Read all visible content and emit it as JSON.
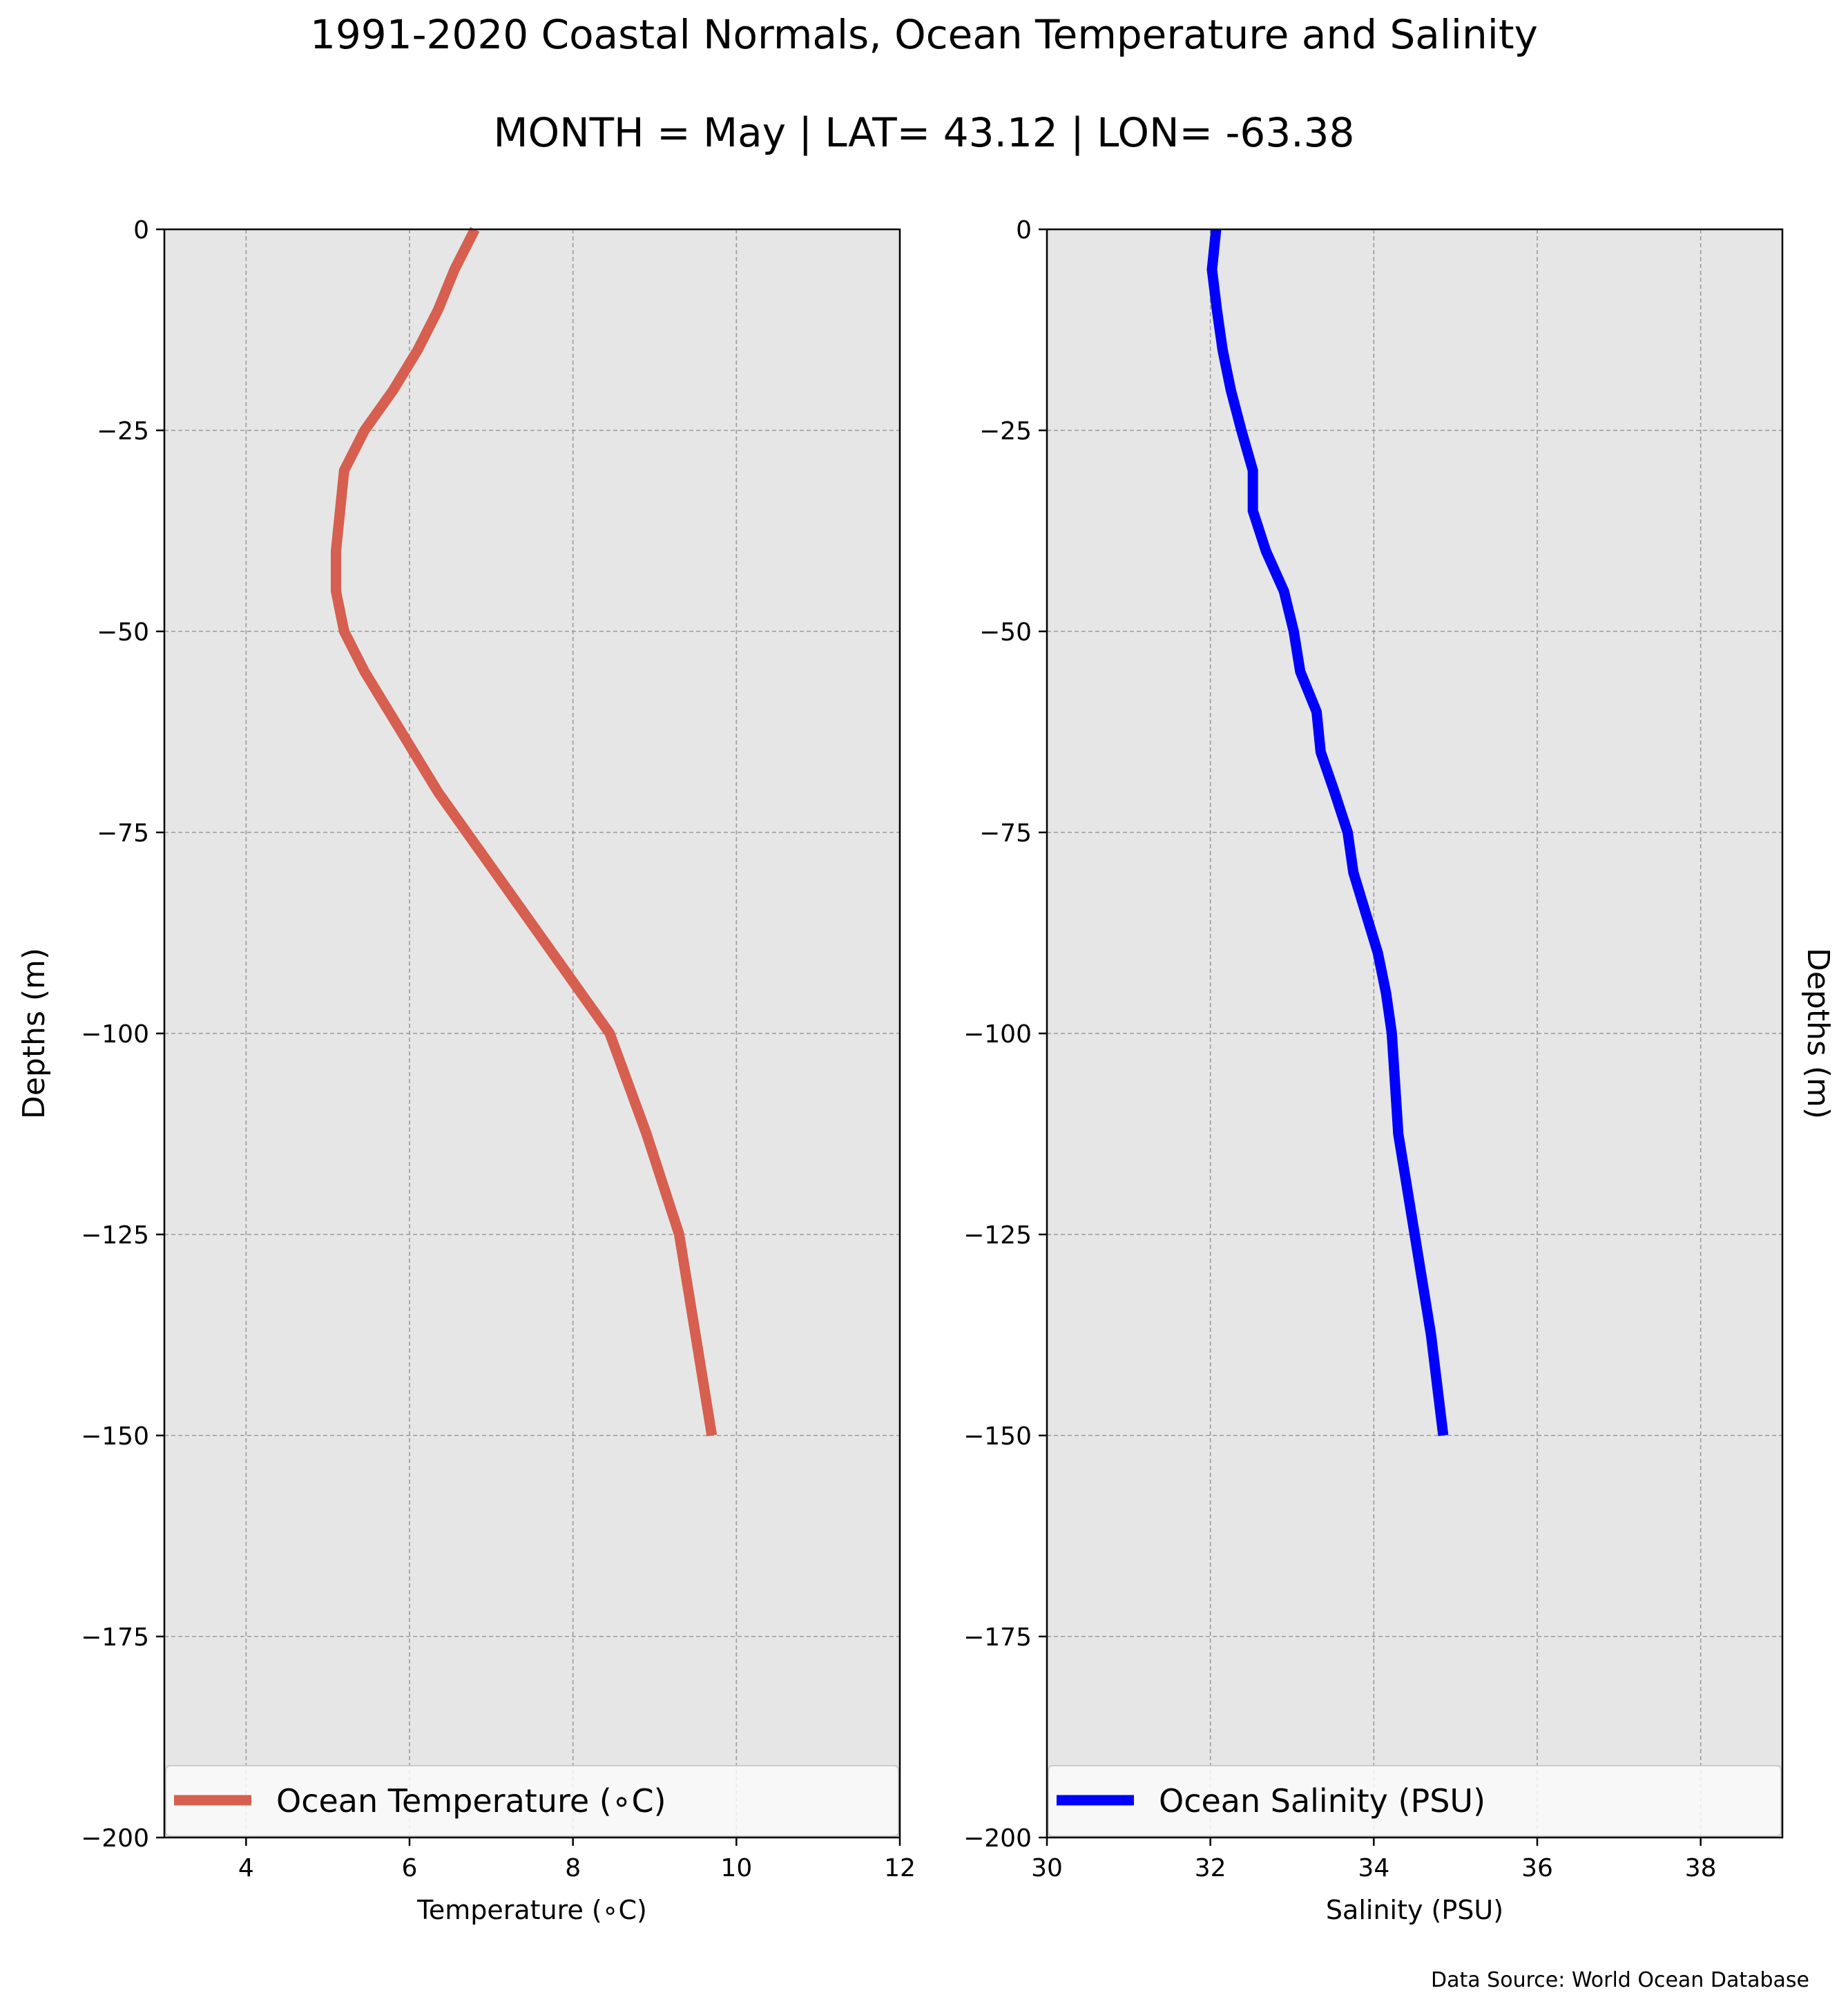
{
  "title": "1991-2020 Coastal Normals, Ocean Temperature and Salinity",
  "subtitle": "MONTH = May | LAT= 43.12 | LON= -63.38",
  "source_note": "Data Source: World Ocean Database",
  "colors": {
    "temperature": "#d65f4f",
    "salinity": "#0000ff",
    "plot_background": "#e6e6e6",
    "grid": "#9a9a9a"
  },
  "chart_data": [
    {
      "type": "line",
      "xlabel": "Temperature (∘C)",
      "ylabel": "Depths (m)",
      "xlim": [
        3,
        12
      ],
      "ylim": [
        -200,
        0
      ],
      "x_ticks": [
        4,
        6,
        8,
        10,
        12
      ],
      "y_ticks": [
        0,
        -25,
        -50,
        -75,
        -100,
        -125,
        -150,
        -175,
        -200
      ],
      "y_tick_labels": [
        "0",
        "−25",
        "−50",
        "−75",
        "−100",
        "−125",
        "−150",
        "−175",
        "−200"
      ],
      "grid": true,
      "legend_position": "bottom",
      "series": [
        {
          "name": "Ocean Temperature (∘C)",
          "color": "#d65f4f",
          "x": [
            6.8,
            6.55,
            6.35,
            6.1,
            5.8,
            5.45,
            5.2,
            5.15,
            5.1,
            5.1,
            5.2,
            5.45,
            5.75,
            6.05,
            6.35,
            6.7,
            7.05,
            7.4,
            7.75,
            8.1,
            8.45,
            8.9,
            9.3,
            9.5,
            9.7
          ],
          "y": [
            0,
            -5,
            -10,
            -15,
            -20,
            -25,
            -30,
            -35,
            -40,
            -45,
            -50,
            -55,
            -60,
            -65,
            -70,
            -75,
            -80,
            -85,
            -90,
            -95,
            -100,
            -112.5,
            -125,
            -137.5,
            -150
          ]
        }
      ]
    },
    {
      "type": "line",
      "xlabel": "Salinity (PSU)",
      "ylabel": "Depths (m)",
      "xlim": [
        30,
        39
      ],
      "ylim": [
        -200,
        0
      ],
      "x_ticks": [
        30,
        32,
        34,
        36,
        38
      ],
      "y_ticks": [
        0,
        -25,
        -50,
        -75,
        -100,
        -125,
        -150,
        -175,
        -200
      ],
      "y_tick_labels": [
        "0",
        "−25",
        "−50",
        "−75",
        "−100",
        "−125",
        "−150",
        "−175",
        "−200"
      ],
      "grid": true,
      "legend_position": "bottom",
      "series": [
        {
          "name": "Ocean Salinity (PSU)",
          "color": "#0000ff",
          "x": [
            32.07,
            32.02,
            32.08,
            32.15,
            32.25,
            32.38,
            32.52,
            32.52,
            32.68,
            32.9,
            33.02,
            33.1,
            33.3,
            33.35,
            33.52,
            33.68,
            33.75,
            33.9,
            34.05,
            34.15,
            34.22,
            34.3,
            34.5,
            34.7,
            34.85
          ],
          "y": [
            0,
            -5,
            -10,
            -15,
            -20,
            -25,
            -30,
            -35,
            -40,
            -45,
            -50,
            -55,
            -60,
            -65,
            -70,
            -75,
            -80,
            -85,
            -90,
            -95,
            -100,
            -112.5,
            -125,
            -137.5,
            -150
          ]
        }
      ]
    }
  ]
}
